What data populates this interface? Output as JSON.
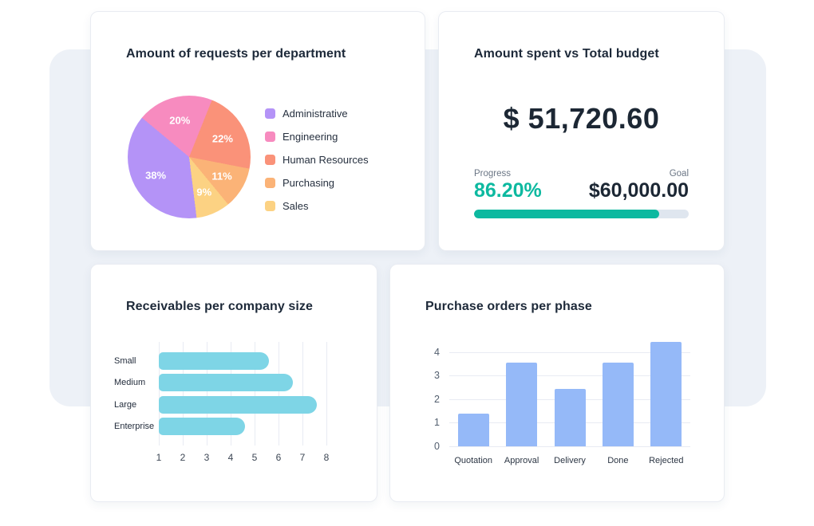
{
  "theme": {
    "page_bg": "#ffffff",
    "panel_bg": "#edf1f7",
    "card_bg": "#ffffff",
    "card_border": "#e9ecf2",
    "title_color": "#1d2939",
    "accent_teal": "#0db9a0",
    "progress_track": "#dfe6ef",
    "grid_color": "#e8ebf3"
  },
  "cards": {
    "requests": {
      "title": "Amount of requests per department"
    },
    "budget": {
      "title": "Amount spent vs Total budget",
      "amount": "$ 51,720.60",
      "progress_label": "Progress",
      "progress_value": "86.20%",
      "progress_pct": 86.2,
      "goal_label": "Goal",
      "goal_value": "$60,000.00"
    },
    "receivables": {
      "title": "Receivables per company size"
    },
    "purchase": {
      "title": "Purchase orders per phase"
    }
  },
  "chart_data": [
    {
      "type": "pie",
      "title": "Amount of requests per department",
      "labels": [
        "Administrative",
        "Engineering",
        "Human Resources",
        "Purchasing",
        "Sales"
      ],
      "values": [
        38,
        20,
        22,
        11,
        9
      ],
      "data_labels": [
        "38%",
        "20%",
        "22%",
        "11%",
        "9%"
      ],
      "colors": [
        "#b493f7",
        "#f78bbf",
        "#fa9279",
        "#fbb377",
        "#fcd283"
      ],
      "legend_position": "right",
      "rotation_deg": 173,
      "label_radius": 0.62,
      "label_color": "#ffffff"
    },
    {
      "type": "progress",
      "title": "Amount spent vs Total budget",
      "amount_spent": "$ 51,720.60",
      "progress_pct": 86.2,
      "goal": "$60,000.00",
      "bar_color": "#0db9a0",
      "track_color": "#dfe6ef"
    },
    {
      "type": "bar",
      "orientation": "horizontal",
      "title": "Receivables per company size",
      "categories": [
        "Small",
        "Medium",
        "Large",
        "Enterprise"
      ],
      "values": [
        5.6,
        6.6,
        7.6,
        4.6
      ],
      "xlim": [
        1,
        8
      ],
      "xticks": [
        1,
        2,
        3,
        4,
        5,
        6,
        7,
        8
      ],
      "grid": true,
      "color": "#7ed5e6"
    },
    {
      "type": "bar",
      "orientation": "vertical",
      "title": "Purchase orders per phase",
      "categories": [
        "Quotation",
        "Approval",
        "Delivery",
        "Done",
        "Rejected"
      ],
      "values": [
        1.4,
        3.55,
        2.45,
        3.55,
        4.45
      ],
      "ylim": [
        0,
        4.71
      ],
      "yticks": [
        0,
        1,
        2,
        3,
        4
      ],
      "grid": true,
      "color": "#95b9f8"
    }
  ]
}
